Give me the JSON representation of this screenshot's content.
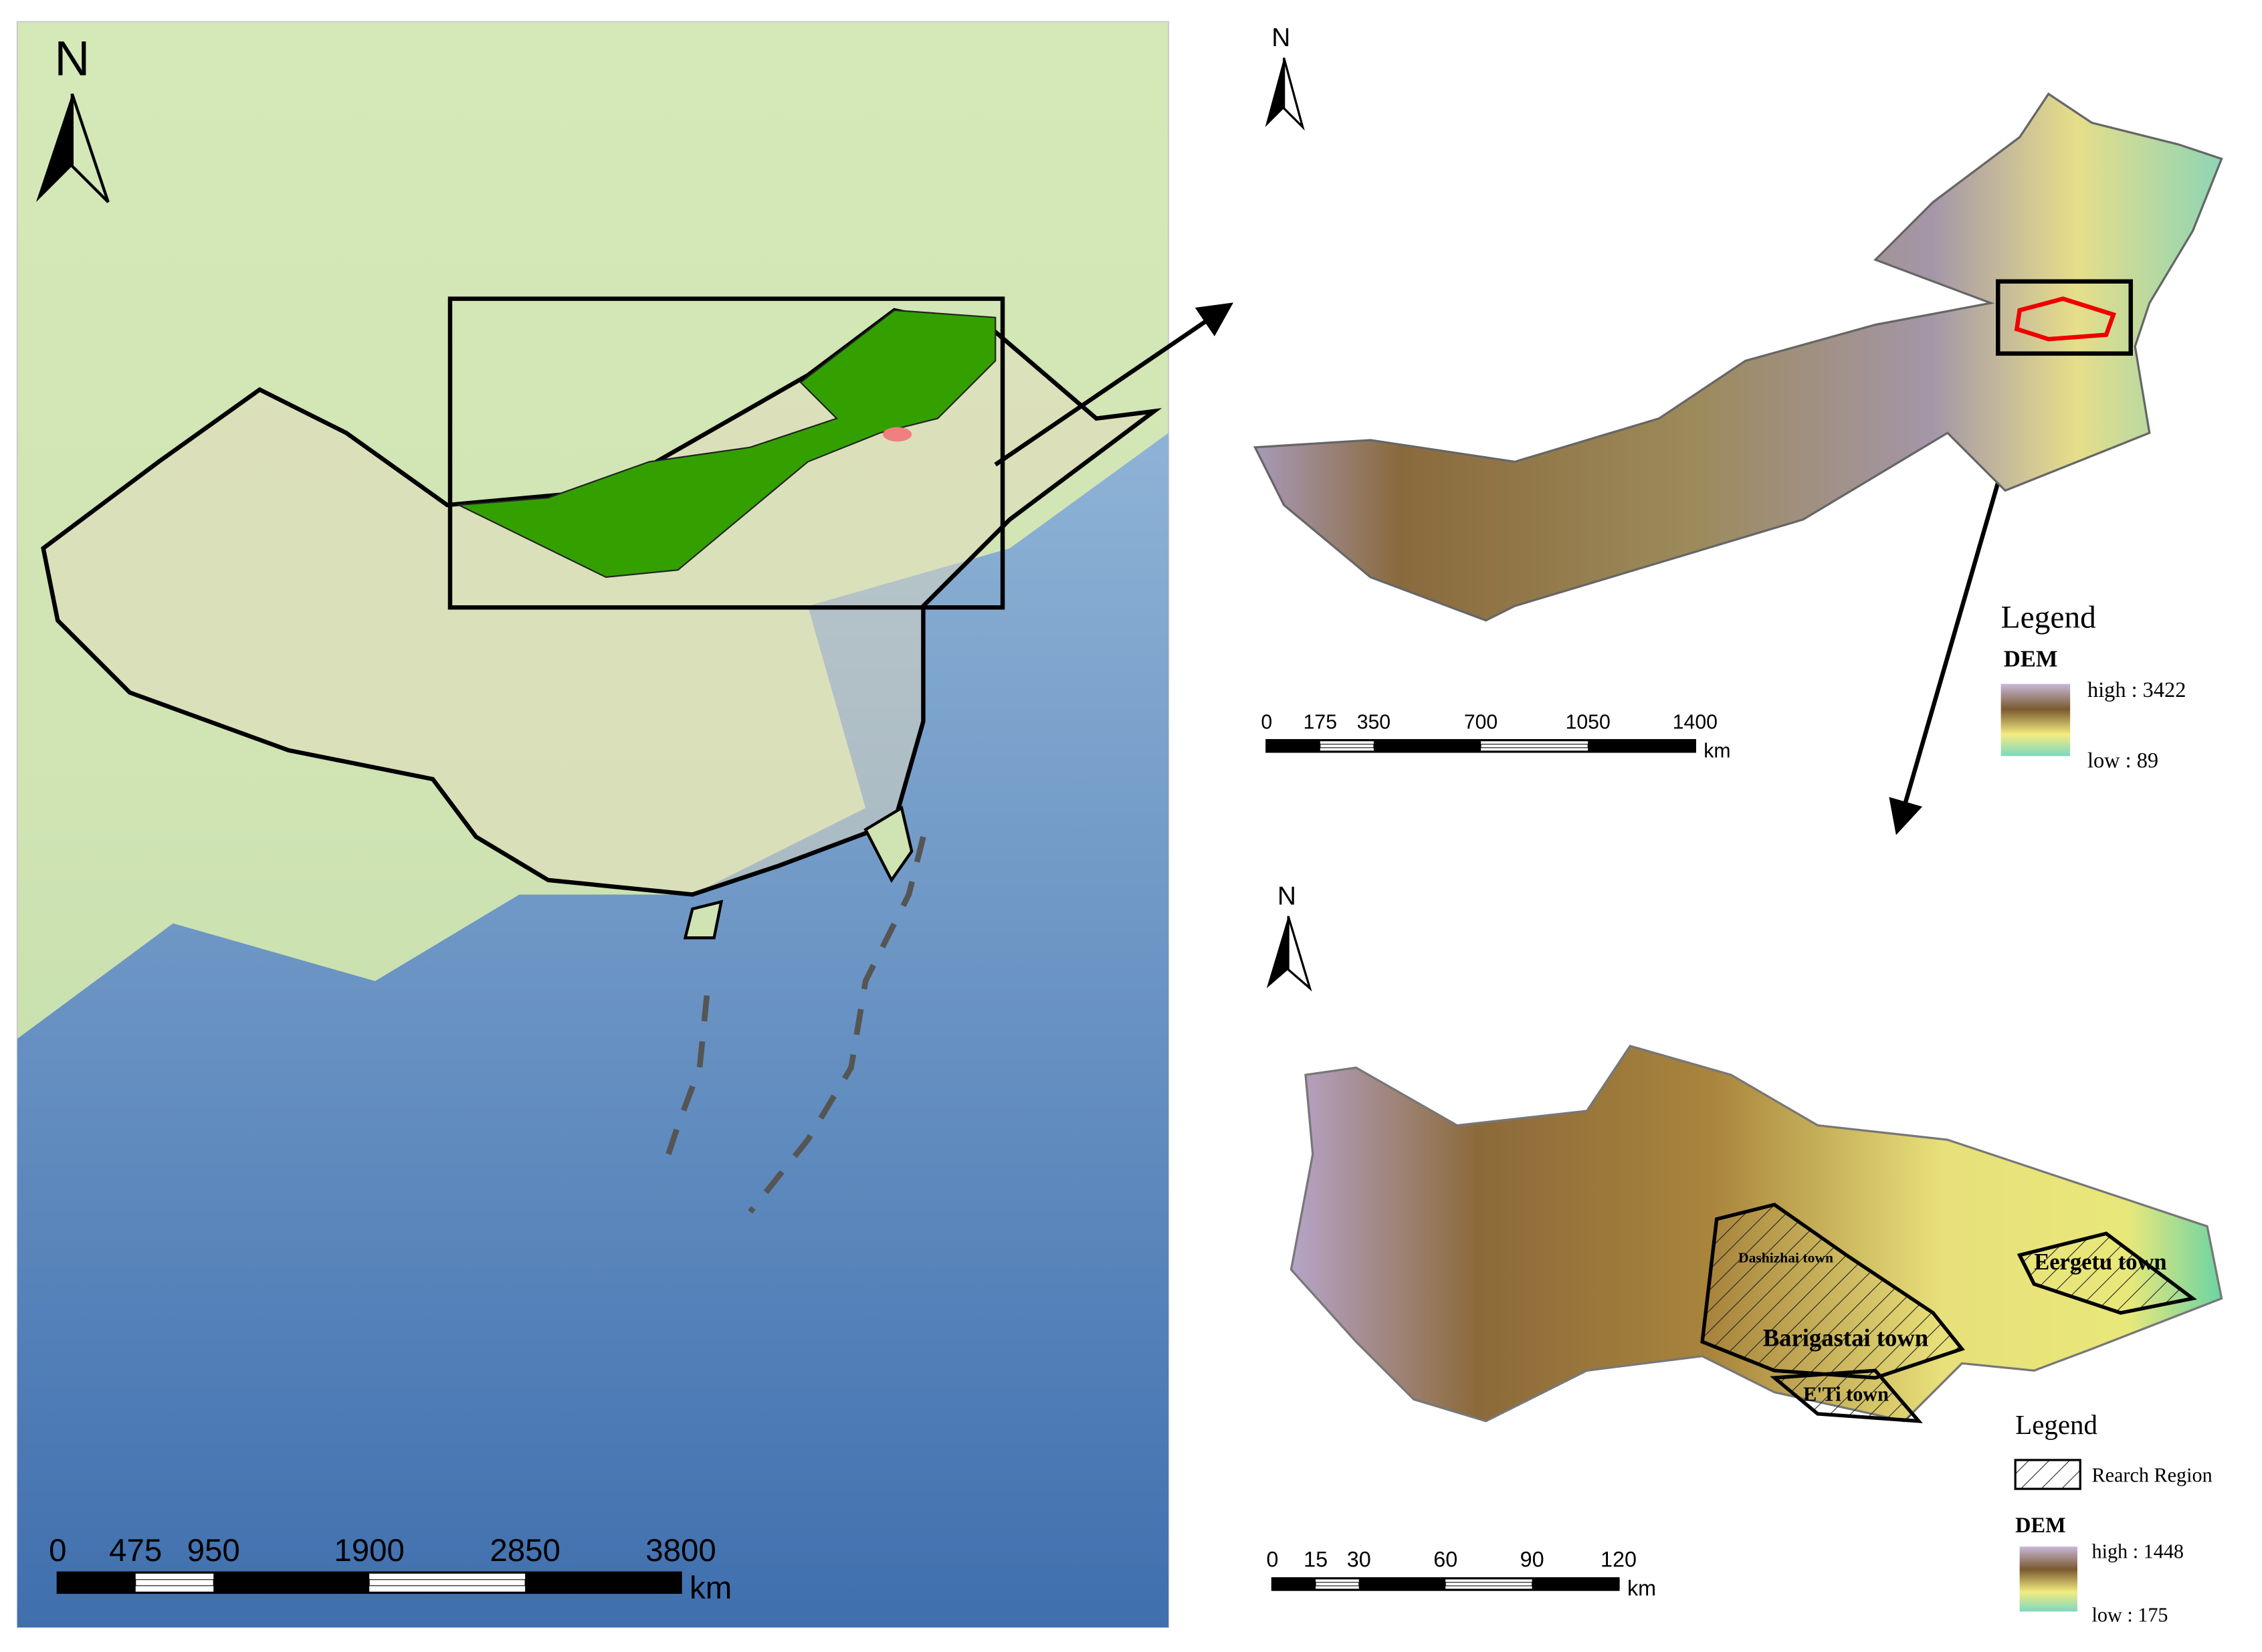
{
  "left_map": {
    "north": "N",
    "scale": {
      "labels": [
        "0",
        "475",
        "950",
        "1900",
        "2850",
        "3800"
      ],
      "unit": "km"
    }
  },
  "inner_mongolia_map": {
    "north": "N",
    "scale": {
      "labels": [
        "0",
        "175",
        "350",
        "700",
        "1050",
        "1400"
      ],
      "unit": "km"
    },
    "legend": {
      "title": "Legend",
      "layer": "DEM",
      "high": "high : 3422",
      "low": "low : 89"
    }
  },
  "study_area_map": {
    "north": "N",
    "towns": [
      "Dashizhai town",
      "Barigastai town",
      "E'Ti town",
      "Eergetu town"
    ],
    "scale": {
      "labels": [
        "0",
        "15",
        "30",
        "60",
        "90",
        "120"
      ],
      "unit": "km"
    },
    "legend": {
      "title": "Legend",
      "hatch": "Rearch Region",
      "layer": "DEM",
      "high": "high : 1448",
      "low": "low : 175"
    }
  }
}
